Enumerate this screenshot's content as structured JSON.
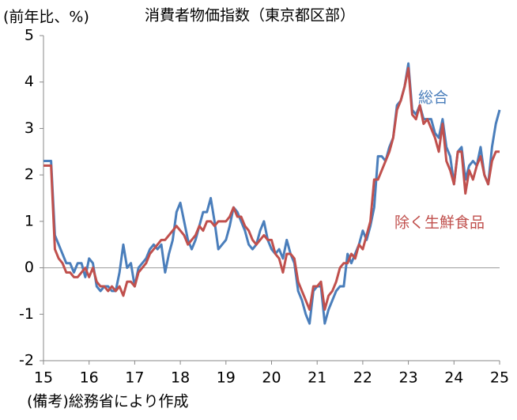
{
  "chart_data": {
    "type": "line",
    "title": "消費者物価指数（東京都区部）",
    "y_axis_label": "(前年比、%)",
    "source": "(備考)総務省により作成",
    "categories": [
      "15",
      null,
      null,
      null,
      null,
      null,
      null,
      null,
      null,
      null,
      null,
      null,
      "16",
      null,
      null,
      null,
      null,
      null,
      null,
      null,
      null,
      null,
      null,
      null,
      "17",
      null,
      null,
      null,
      null,
      null,
      null,
      null,
      null,
      null,
      null,
      null,
      "18",
      null,
      null,
      null,
      null,
      null,
      null,
      null,
      null,
      null,
      null,
      null,
      "19",
      null,
      null,
      null,
      null,
      null,
      null,
      null,
      null,
      null,
      null,
      null,
      "20",
      null,
      null,
      null,
      null,
      null,
      null,
      null,
      null,
      null,
      null,
      null,
      "21",
      null,
      null,
      null,
      null,
      null,
      null,
      null,
      null,
      null,
      null,
      null,
      "22",
      null,
      null,
      null,
      null,
      null,
      null,
      null,
      null,
      null,
      null,
      null,
      "23",
      null,
      null,
      null,
      null,
      null,
      null,
      null,
      null,
      null,
      null,
      null,
      "24",
      null,
      null,
      null,
      null,
      null,
      null,
      null,
      null,
      null,
      null,
      null,
      "25"
    ],
    "series": [
      {
        "name": "総合",
        "color": "#4a7ebb",
        "values": [
          2.3,
          2.3,
          2.3,
          0.7,
          0.5,
          0.3,
          0.1,
          0.1,
          -0.1,
          0.1,
          0.1,
          -0.2,
          0.2,
          0.1,
          -0.4,
          -0.5,
          -0.4,
          -0.4,
          -0.5,
          -0.5,
          -0.1,
          0.5,
          0.0,
          0.1,
          -0.4,
          0.0,
          0.1,
          0.2,
          0.4,
          0.5,
          0.4,
          0.5,
          -0.1,
          0.3,
          0.6,
          1.2,
          1.4,
          1.0,
          0.6,
          0.4,
          0.6,
          0.9,
          1.2,
          1.2,
          1.5,
          1.0,
          0.4,
          0.5,
          0.6,
          0.9,
          1.3,
          1.2,
          1.0,
          0.8,
          0.5,
          0.4,
          0.5,
          0.8,
          1.0,
          0.6,
          0.4,
          0.3,
          0.4,
          0.2,
          0.6,
          0.3,
          0.1,
          -0.5,
          -0.7,
          -1.0,
          -1.2,
          -0.5,
          -0.4,
          -0.4,
          -1.2,
          -0.9,
          -0.7,
          -0.5,
          -0.4,
          -0.4,
          0.3,
          0.1,
          0.3,
          0.5,
          0.8,
          0.6,
          0.9,
          1.3,
          2.4,
          2.4,
          2.3,
          2.6,
          2.8,
          3.5,
          3.6,
          3.9,
          4.4,
          3.4,
          3.3,
          3.5,
          3.2,
          3.2,
          3.2,
          2.9,
          2.8,
          3.2,
          2.6,
          2.4,
          1.8,
          2.5,
          2.6,
          1.9,
          2.2,
          2.3,
          2.2,
          2.6,
          2.0,
          1.8,
          2.6,
          3.1,
          3.4
        ]
      },
      {
        "name": "除く生鮮食品",
        "color": "#c0504d",
        "values": [
          2.2,
          2.2,
          2.2,
          0.4,
          0.2,
          0.1,
          -0.1,
          -0.1,
          -0.2,
          -0.2,
          -0.1,
          0.0,
          -0.2,
          0.0,
          -0.3,
          -0.4,
          -0.4,
          -0.5,
          -0.4,
          -0.5,
          -0.4,
          -0.6,
          -0.3,
          -0.3,
          -0.4,
          -0.1,
          0.0,
          0.1,
          0.3,
          0.4,
          0.5,
          0.6,
          0.6,
          0.7,
          0.8,
          0.9,
          0.8,
          0.7,
          0.5,
          0.6,
          0.7,
          0.9,
          0.8,
          1.0,
          1.0,
          0.9,
          1.0,
          1.0,
          1.0,
          1.1,
          1.3,
          1.1,
          1.1,
          0.9,
          0.8,
          0.6,
          0.5,
          0.6,
          0.7,
          0.6,
          0.6,
          0.3,
          0.2,
          -0.1,
          0.3,
          0.3,
          0.2,
          -0.3,
          -0.5,
          -0.7,
          -0.9,
          -0.4,
          -0.4,
          -0.3,
          -0.9,
          -0.6,
          -0.5,
          -0.3,
          0.0,
          0.1,
          0.1,
          0.3,
          0.2,
          0.5,
          0.4,
          0.7,
          1.0,
          1.9,
          1.9,
          2.1,
          2.3,
          2.5,
          2.8,
          3.4,
          3.6,
          3.9,
          4.3,
          3.3,
          3.2,
          3.5,
          3.1,
          3.2,
          3.0,
          2.8,
          2.5,
          3.1,
          2.3,
          2.1,
          1.8,
          2.5,
          2.5,
          1.6,
          2.1,
          1.9,
          2.2,
          2.4,
          2.0,
          1.8,
          2.3,
          2.5,
          2.5
        ]
      }
    ],
    "ylim": [
      -2,
      5
    ],
    "yticks": [
      -2,
      -1,
      0,
      1,
      2,
      3,
      4,
      5
    ]
  }
}
